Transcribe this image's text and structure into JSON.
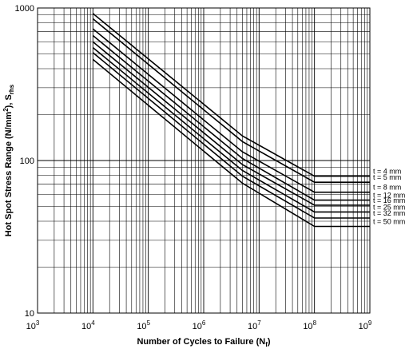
{
  "chart_data": {
    "type": "line",
    "x_scale": "log",
    "y_scale": "log",
    "xlim": [
      1000,
      1000000000
    ],
    "ylim": [
      10,
      1000
    ],
    "grid": true,
    "x_ticks": [
      {
        "value": 1000,
        "base": "10",
        "exp": "3"
      },
      {
        "value": 10000,
        "base": "10",
        "exp": "4"
      },
      {
        "value": 100000,
        "base": "10",
        "exp": "5"
      },
      {
        "value": 1000000,
        "base": "10",
        "exp": "6"
      },
      {
        "value": 10000000,
        "base": "10",
        "exp": "7"
      },
      {
        "value": 100000000,
        "base": "10",
        "exp": "8"
      },
      {
        "value": 1000000000,
        "base": "10",
        "exp": "9"
      }
    ],
    "y_ticks": [
      {
        "value": 10,
        "label": "10"
      },
      {
        "value": 100,
        "label": "100"
      },
      {
        "value": 1000,
        "label": "1000"
      }
    ],
    "xlabel": {
      "main": "Number of Cycles to Failure (N",
      "sub": "f",
      "end": ")"
    },
    "ylabel": {
      "pre": "Hot Spot Stress Range (N/mm",
      "sup": "2",
      "mid": "), S",
      "sub": "rhs"
    },
    "series": [
      {
        "name": "t = 4 mm",
        "points": [
          [
            10000,
            920
          ],
          [
            5000000,
            145
          ],
          [
            100000000,
            79
          ],
          [
            1000000000,
            79
          ]
        ]
      },
      {
        "name": "t = 5 mm",
        "points": [
          [
            10000,
            850
          ],
          [
            5000000,
            133
          ],
          [
            100000000,
            72
          ],
          [
            1000000000,
            72
          ]
        ]
      },
      {
        "name": "t = 8 mm",
        "points": [
          [
            10000,
            730
          ],
          [
            5000000,
            114
          ],
          [
            100000000,
            62
          ],
          [
            1000000000,
            62
          ]
        ]
      },
      {
        "name": "t = 12 mm",
        "points": [
          [
            10000,
            660
          ],
          [
            5000000,
            103
          ],
          [
            100000000,
            55
          ],
          [
            1000000000,
            55
          ]
        ]
      },
      {
        "name": "t = 16 mm",
        "points": [
          [
            10000,
            600
          ],
          [
            5000000,
            94
          ],
          [
            100000000,
            51
          ],
          [
            1000000000,
            51
          ]
        ]
      },
      {
        "name": "t = 25 mm",
        "points": [
          [
            10000,
            550
          ],
          [
            5000000,
            86
          ],
          [
            100000000,
            46
          ],
          [
            1000000000,
            46
          ]
        ]
      },
      {
        "name": "t = 32 mm",
        "points": [
          [
            10000,
            510
          ],
          [
            5000000,
            79
          ],
          [
            100000000,
            42
          ],
          [
            1000000000,
            42
          ]
        ]
      },
      {
        "name": "t = 50 mm",
        "points": [
          [
            10000,
            460
          ],
          [
            5000000,
            71
          ],
          [
            100000000,
            37
          ],
          [
            1000000000,
            37
          ]
        ]
      }
    ],
    "line_color": "#000000",
    "grid_color": "#000000"
  }
}
